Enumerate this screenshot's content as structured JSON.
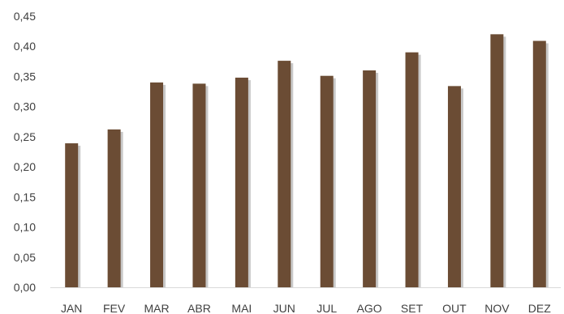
{
  "chart_data": {
    "type": "bar",
    "categories": [
      "JAN",
      "FEV",
      "MAR",
      "ABR",
      "MAI",
      "JUN",
      "JUL",
      "AGO",
      "SET",
      "OUT",
      "NOV",
      "DEZ"
    ],
    "values": [
      0.239,
      0.262,
      0.34,
      0.338,
      0.348,
      0.376,
      0.351,
      0.36,
      0.39,
      0.334,
      0.42,
      0.409
    ],
    "ylim": [
      0,
      0.45
    ],
    "yticks": [
      "0,00",
      "0,05",
      "0,10",
      "0,15",
      "0,20",
      "0,25",
      "0,30",
      "0,35",
      "0,40",
      "0,45"
    ],
    "title": "",
    "xlabel": "",
    "ylabel": "",
    "grid": false,
    "legend": "none",
    "bar_color": "#6b4c34",
    "shadow_color": "#c8c8c8"
  }
}
